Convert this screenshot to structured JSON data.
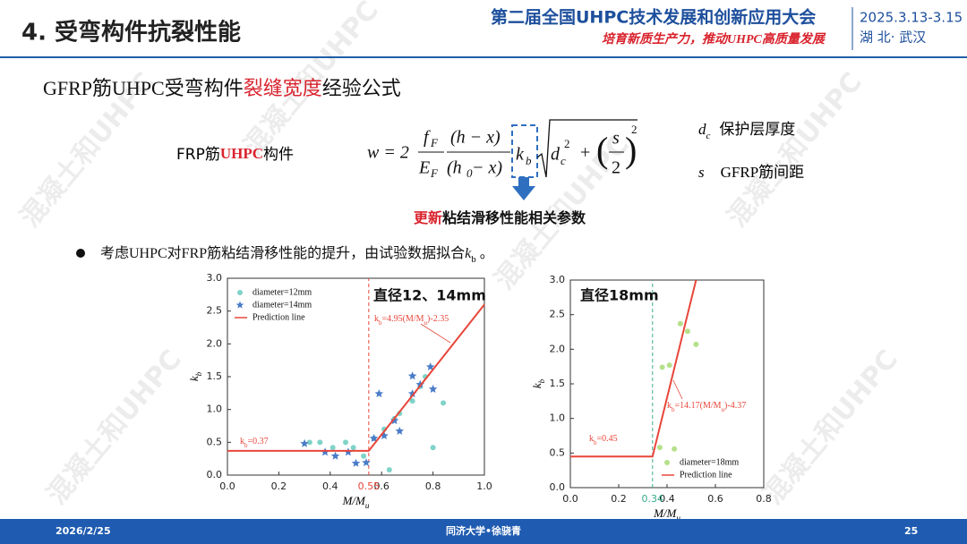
{
  "header": {
    "title": "4. 受弯构件抗裂性能",
    "conference": "第二届全国UHPC技术发展和创新应用大会",
    "slogan": "培育新质生产力，推动UHPC高质量发展",
    "date": "2025.3.13-3.15",
    "location": "湖 北· 武汉"
  },
  "watermark": "混凝土和UHPC",
  "subtitle": [
    "GFRP筋UHPC受弯构件",
    "裂缝宽度",
    "经验公式"
  ],
  "formula_label": [
    "FRP筋",
    "UHPC",
    "构件"
  ],
  "formula": {
    "lhs": "w = 2",
    "f": "f",
    "f_sub": "F",
    "E": "E",
    "E_sub": "F",
    "num2": "(h − x)",
    "den2a": "(h",
    "den2_sub": "0",
    "den2b": " − x)",
    "k": "k",
    "k_sub": "b",
    "d": "d",
    "d_sub": "c",
    "d_sup": "2",
    "plus": "+",
    "lp": "(",
    "s": "s",
    "two": "2",
    "rp": ")",
    "outer_sup": "2"
  },
  "definitions": [
    {
      "symbol": [
        "d",
        "c"
      ],
      "text": "保护层厚度"
    },
    {
      "symbol": [
        "s"
      ],
      "text": "GFRP筋间距"
    }
  ],
  "update_note": [
    "更新",
    "粘结滑移性能相关参数"
  ],
  "bullet": [
    "考虑UHPC对FRP筋粘结滑移性能的提升，由试验数据拟合",
    "k",
    "b",
    " 。"
  ],
  "footer": {
    "date": "2026/2/25",
    "author": "同济大学•徐骁青",
    "page": "25"
  },
  "chart_data": [
    {
      "type": "scatter",
      "title": "直径12、14mm",
      "xlabel": [
        "M/M",
        "u"
      ],
      "ylabel": [
        "k",
        "b"
      ],
      "xlim": [
        0,
        1
      ],
      "ylim": [
        0,
        3
      ],
      "xticks": [
        {
          "value": 0,
          "label": "0.0"
        },
        {
          "value": 0.2,
          "label": "0.2"
        },
        {
          "value": 0.4,
          "label": "0.4"
        },
        {
          "value": 0.6,
          "label": "0.6"
        },
        {
          "value": 0.8,
          "label": "0.8"
        },
        {
          "value": 1,
          "label": "1.0"
        }
      ],
      "yticks": [
        {
          "value": 0,
          "label": "0.0"
        },
        {
          "value": 0.5,
          "label": "0.5"
        },
        {
          "value": 1,
          "label": "1.0"
        },
        {
          "value": 1.5,
          "label": "1.5"
        },
        {
          "value": 2,
          "label": "2.0"
        },
        {
          "value": 2.5,
          "label": "2.5"
        },
        {
          "value": 3,
          "label": "3.0"
        }
      ],
      "ref_x": {
        "value": 0.55,
        "label": "0.55",
        "color": "#e8463a"
      },
      "legend": "upper left",
      "fit_label": [
        "k",
        "b",
        "=4.95(M/M",
        "u",
        ")-2.35"
      ],
      "const_label": [
        "k",
        "b",
        "=0.37"
      ],
      "series": [
        {
          "name": "diameter=12mm",
          "color": "#7fd3c8",
          "marker": "circle",
          "x": [
            0.32,
            0.36,
            0.41,
            0.46,
            0.49,
            0.53,
            0.57,
            0.61,
            0.65,
            0.63,
            0.67,
            0.72,
            0.75,
            0.8,
            0.84,
            0.77
          ],
          "values": [
            0.5,
            0.5,
            0.42,
            0.5,
            0.42,
            0.29,
            0.56,
            0.7,
            0.86,
            0.08,
            0.94,
            1.13,
            1.35,
            0.42,
            1.1,
            1.5
          ]
        },
        {
          "name": "diameter=14mm",
          "color": "#4a7cc8",
          "marker": "star",
          "x": [
            0.3,
            0.38,
            0.42,
            0.47,
            0.5,
            0.54,
            0.57,
            0.59,
            0.61,
            0.65,
            0.67,
            0.72,
            0.72,
            0.75,
            0.79,
            0.8
          ],
          "values": [
            0.48,
            0.35,
            0.29,
            0.35,
            0.18,
            0.19,
            0.56,
            1.24,
            0.6,
            0.83,
            0.67,
            1.24,
            1.51,
            1.38,
            1.65,
            1.31
          ]
        },
        {
          "name": "Prediction line",
          "color": "#e8463a",
          "marker": "line",
          "x": [
            0,
            0.55,
            1
          ],
          "values": [
            0.37,
            0.37,
            2.6
          ]
        }
      ]
    },
    {
      "type": "scatter",
      "title": "直径18mm",
      "xlabel": [
        "M/M",
        "u"
      ],
      "ylabel": [
        "k",
        "b"
      ],
      "xlim": [
        0,
        0.8
      ],
      "ylim": [
        0,
        3
      ],
      "xticks": [
        {
          "value": 0,
          "label": "0.0"
        },
        {
          "value": 0.2,
          "label": "0.2"
        },
        {
          "value": 0.4,
          "label": "0.4"
        },
        {
          "value": 0.6,
          "label": "0.6"
        },
        {
          "value": 0.8,
          "label": "0.8"
        }
      ],
      "yticks": [
        {
          "value": 0,
          "label": "0.0"
        },
        {
          "value": 0.5,
          "label": "0.5"
        },
        {
          "value": 1,
          "label": "1.0"
        },
        {
          "value": 1.5,
          "label": "1.5"
        },
        {
          "value": 2,
          "label": "2.0"
        },
        {
          "value": 2.5,
          "label": "2.5"
        },
        {
          "value": 3,
          "label": "3.0"
        }
      ],
      "ref_x": {
        "value": 0.34,
        "label": "0.34",
        "color": "#3aaa8a"
      },
      "legend": "lower right",
      "fit_label": [
        "k",
        "b",
        "=14.17(M/M",
        "u",
        ")-4.37"
      ],
      "const_label": [
        "k",
        "b",
        "=0.45"
      ],
      "series": [
        {
          "name": "diameter=18mm",
          "color": "#b5e08a",
          "marker": "circle",
          "x": [
            0.37,
            0.38,
            0.41,
            0.455,
            0.485,
            0.52,
            0.43
          ],
          "values": [
            0.58,
            1.74,
            1.77,
            2.37,
            2.26,
            2.07,
            0.56
          ]
        },
        {
          "name": "Prediction line",
          "color": "#e8463a",
          "marker": "line",
          "x": [
            0,
            0.34,
            0.52
          ],
          "values": [
            0.45,
            0.45,
            3
          ]
        }
      ]
    }
  ]
}
